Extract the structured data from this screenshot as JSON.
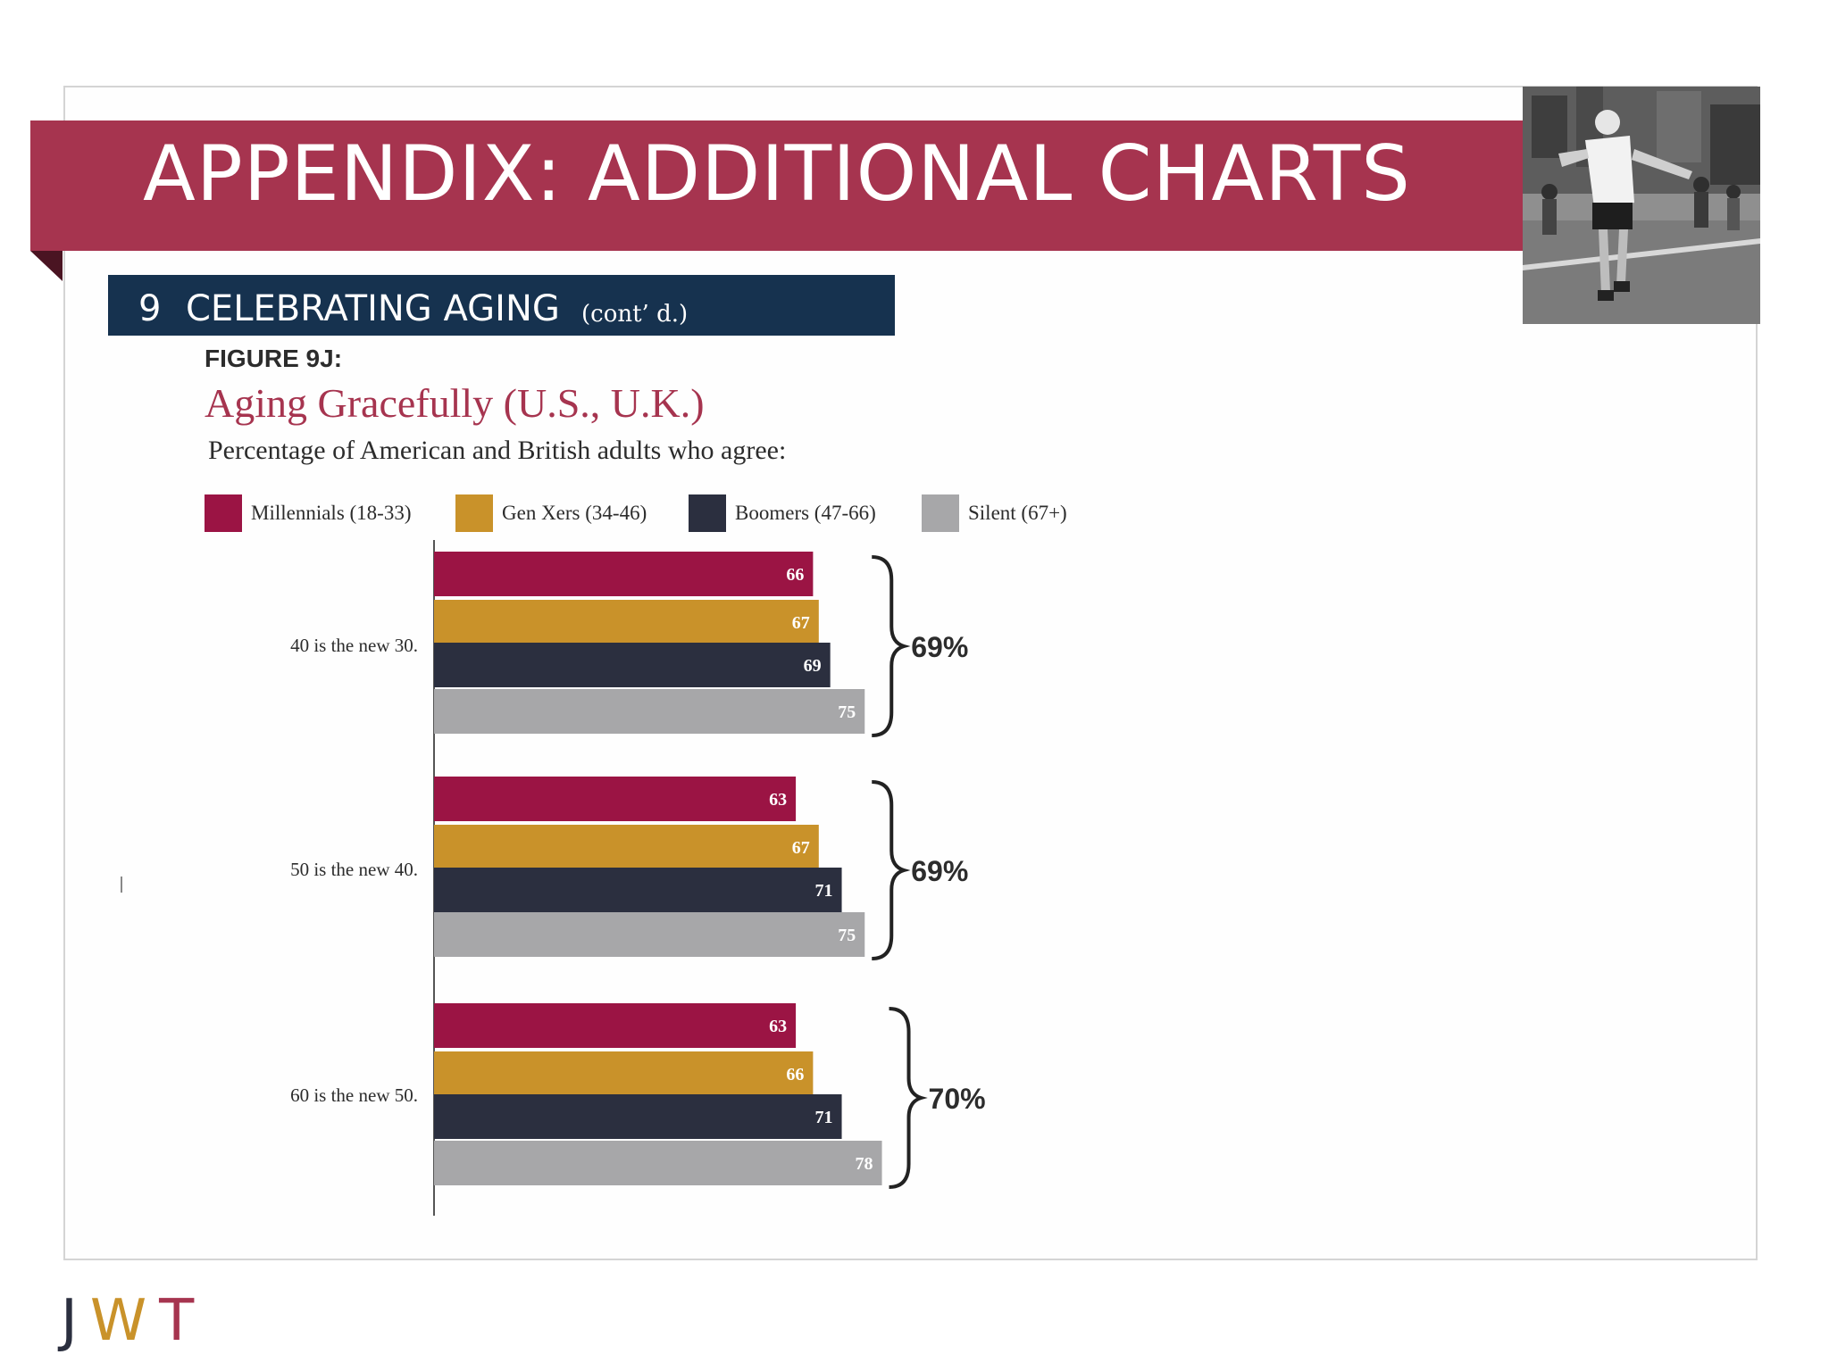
{
  "header": {
    "title": "APPENDIX: ADDITIONAL CHARTS"
  },
  "section": {
    "number": "9",
    "title": "CELEBRATING AGING",
    "subtitle": "(cont’ d.)"
  },
  "figure": {
    "label": "FIGURE 9J:"
  },
  "colors": {
    "title_band": "#a6344f",
    "section_band": "#16324f",
    "millennials": "#9b1444",
    "gen_xers": "#c9922a",
    "boomers": "#2b2f3f",
    "silent": "#a7a7a9"
  },
  "chart_data": {
    "type": "bar",
    "orientation": "horizontal",
    "title": "Aging Gracefully (U.S., U.K.)",
    "subtitle": "Percentage of American and British adults who agree:",
    "categories": [
      "40 is the new 30.",
      "50 is the new 40.",
      "60 is the new 50."
    ],
    "series": [
      {
        "name": "Millennials (18-33)",
        "values": [
          66,
          63,
          63
        ]
      },
      {
        "name": "Gen Xers (34-46)",
        "values": [
          67,
          67,
          66
        ]
      },
      {
        "name": "Boomers (47-66)",
        "values": [
          69,
          71,
          71
        ]
      },
      {
        "name": "Silent (67+)",
        "values": [
          75,
          75,
          78
        ]
      }
    ],
    "totals": [
      "69%",
      "69%",
      "70%"
    ],
    "xlim": [
      0,
      78
    ],
    "legend": "top",
    "grid": false
  },
  "logo": {
    "letters": [
      "J",
      "W",
      "T"
    ]
  }
}
